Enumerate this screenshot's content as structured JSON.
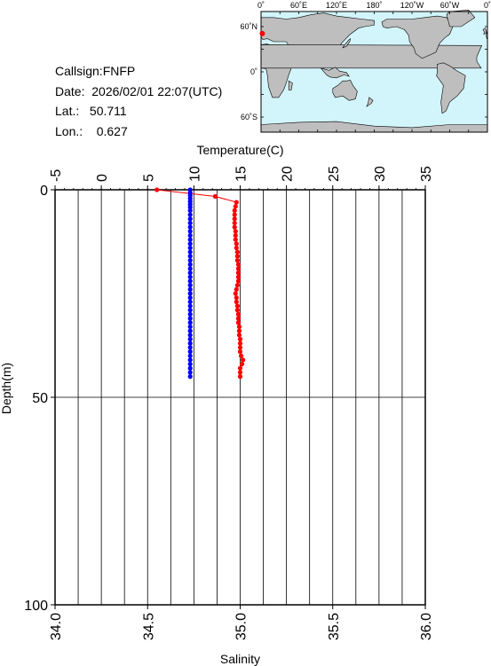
{
  "info": {
    "callsign": "Callsign:FNFP",
    "date": "Date:  2026/02/01 22:07(UTC)",
    "lat": "Lat.:   50.711",
    "lon": "Lon.:    0.627"
  },
  "map": {
    "top_labels": [
      "0˚",
      "60˚E",
      "120˚E",
      "180˚",
      "120˚W",
      "60˚W",
      "0˚"
    ],
    "lat_labels": [
      "60˚N",
      "0˚",
      "60˚S"
    ],
    "ocean_color": "#d2f5fb",
    "land_color": "#bebebe",
    "marker": {
      "lon": 0.627,
      "lat": 50.711,
      "color": "#ff0000"
    }
  },
  "chart_data": {
    "type": "line",
    "top_axis": {
      "label": "Temperature(C)",
      "range": [
        -5,
        35
      ],
      "ticks": [
        "-5",
        "0",
        "5",
        "10",
        "15",
        "20",
        "25",
        "30",
        "35"
      ]
    },
    "bottom_axis": {
      "label": "Salinity",
      "range": [
        34.0,
        36.0
      ],
      "ticks": [
        "34.0",
        "34.5",
        "35.0",
        "35.5",
        "36.0"
      ]
    },
    "y_axis": {
      "label": "Depth(m)",
      "range": [
        0,
        100
      ],
      "inverted": true,
      "ticks": [
        "0",
        "50",
        "100"
      ]
    },
    "grid": true,
    "series": [
      {
        "quantity": "temperature",
        "color": "#ff0000",
        "points": [
          [
            6.0,
            0.0
          ],
          [
            12.3,
            1.6
          ],
          [
            14.6,
            3.0
          ],
          [
            14.5,
            4.0
          ],
          [
            14.4,
            5.0
          ],
          [
            14.4,
            6.0
          ],
          [
            14.4,
            7.0
          ],
          [
            14.4,
            8.0
          ],
          [
            14.4,
            9.0
          ],
          [
            14.5,
            10.0
          ],
          [
            14.5,
            11.0
          ],
          [
            14.5,
            12.0
          ],
          [
            14.6,
            13.0
          ],
          [
            14.6,
            14.0
          ],
          [
            14.7,
            15.0
          ],
          [
            14.7,
            16.0
          ],
          [
            14.7,
            17.0
          ],
          [
            14.8,
            18.0
          ],
          [
            14.8,
            19.0
          ],
          [
            14.8,
            20.0
          ],
          [
            14.8,
            21.0
          ],
          [
            14.8,
            22.0
          ],
          [
            14.7,
            23.0
          ],
          [
            14.6,
            24.0
          ],
          [
            14.5,
            25.0
          ],
          [
            14.6,
            26.0
          ],
          [
            14.6,
            27.0
          ],
          [
            14.7,
            28.0
          ],
          [
            14.7,
            29.0
          ],
          [
            14.8,
            30.0
          ],
          [
            14.8,
            31.0
          ],
          [
            14.8,
            32.0
          ],
          [
            14.9,
            33.0
          ],
          [
            14.9,
            34.0
          ],
          [
            14.9,
            35.0
          ],
          [
            15.0,
            36.0
          ],
          [
            15.0,
            37.0
          ],
          [
            15.0,
            38.0
          ],
          [
            15.0,
            39.0
          ],
          [
            15.1,
            40.0
          ],
          [
            15.3,
            41.0
          ],
          [
            15.2,
            42.0
          ],
          [
            15.0,
            43.0
          ],
          [
            15.0,
            44.0
          ],
          [
            15.0,
            45.0
          ]
        ]
      },
      {
        "quantity": "salinity",
        "color": "#0000ff",
        "points": [
          [
            34.73,
            0.0
          ],
          [
            34.73,
            0.7
          ],
          [
            34.73,
            1.4
          ],
          [
            34.73,
            2.1
          ],
          [
            34.73,
            2.8
          ],
          [
            34.73,
            3.5
          ],
          [
            34.73,
            4.2
          ],
          [
            34.73,
            5.0
          ],
          [
            34.73,
            6.0
          ],
          [
            34.73,
            7.0
          ],
          [
            34.73,
            8.0
          ],
          [
            34.73,
            9.0
          ],
          [
            34.73,
            10.0
          ],
          [
            34.73,
            11.0
          ],
          [
            34.73,
            12.0
          ],
          [
            34.73,
            13.0
          ],
          [
            34.73,
            14.0
          ],
          [
            34.73,
            15.0
          ],
          [
            34.73,
            16.0
          ],
          [
            34.73,
            17.0
          ],
          [
            34.73,
            18.0
          ],
          [
            34.73,
            19.0
          ],
          [
            34.73,
            20.0
          ],
          [
            34.73,
            21.0
          ],
          [
            34.73,
            22.0
          ],
          [
            34.73,
            23.0
          ],
          [
            34.73,
            24.0
          ],
          [
            34.73,
            25.0
          ],
          [
            34.73,
            26.0
          ],
          [
            34.73,
            27.0
          ],
          [
            34.73,
            28.0
          ],
          [
            34.73,
            29.0
          ],
          [
            34.73,
            30.0
          ],
          [
            34.73,
            31.0
          ],
          [
            34.73,
            32.0
          ],
          [
            34.73,
            33.0
          ],
          [
            34.73,
            34.0
          ],
          [
            34.73,
            35.0
          ],
          [
            34.73,
            36.0
          ],
          [
            34.73,
            37.0
          ],
          [
            34.73,
            38.0
          ],
          [
            34.73,
            39.0
          ],
          [
            34.73,
            40.0
          ],
          [
            34.73,
            41.0
          ],
          [
            34.73,
            42.0
          ],
          [
            34.73,
            43.0
          ],
          [
            34.73,
            44.0
          ],
          [
            34.73,
            45.0
          ]
        ]
      }
    ]
  }
}
